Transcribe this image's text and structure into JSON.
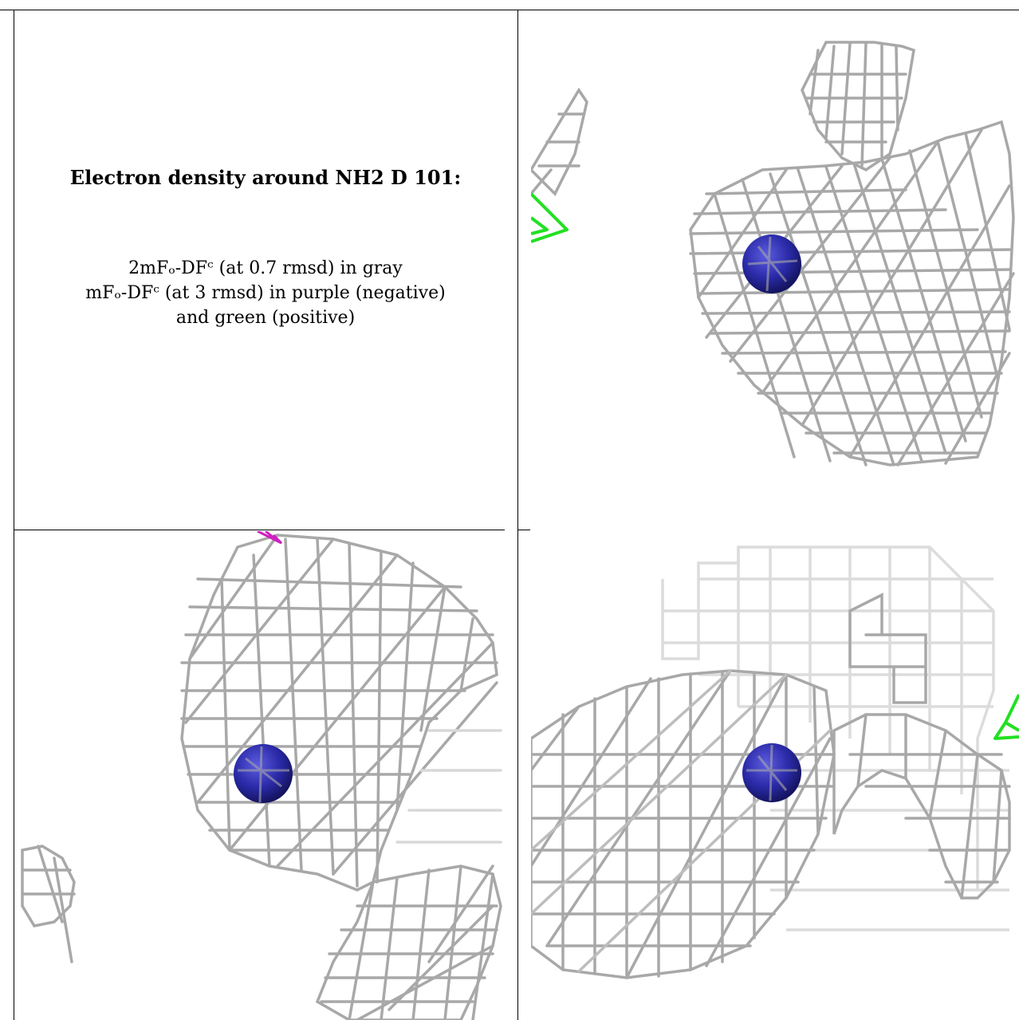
{
  "caption": {
    "title": "Electron density around NH2 D 101:",
    "line1": "2mFₒ-DFᶜ (at 0.7 rmsd) in gray",
    "line2": "mFₒ-DFᶜ (at 3 rmsd) in purple (negative)",
    "line3": "and green (positive)"
  },
  "colors": {
    "mesh_2fofc": "#9a9a9a",
    "mesh_positive": "#22e022",
    "mesh_negative": "#d020c0",
    "atom": "#2a2aa8",
    "border": "#000000"
  },
  "views": [
    {
      "name": "view-1",
      "contours": [
        "gray",
        "green"
      ]
    },
    {
      "name": "view-2",
      "contours": [
        "gray",
        "purple"
      ]
    },
    {
      "name": "view-3",
      "contours": [
        "gray",
        "green"
      ]
    }
  ]
}
